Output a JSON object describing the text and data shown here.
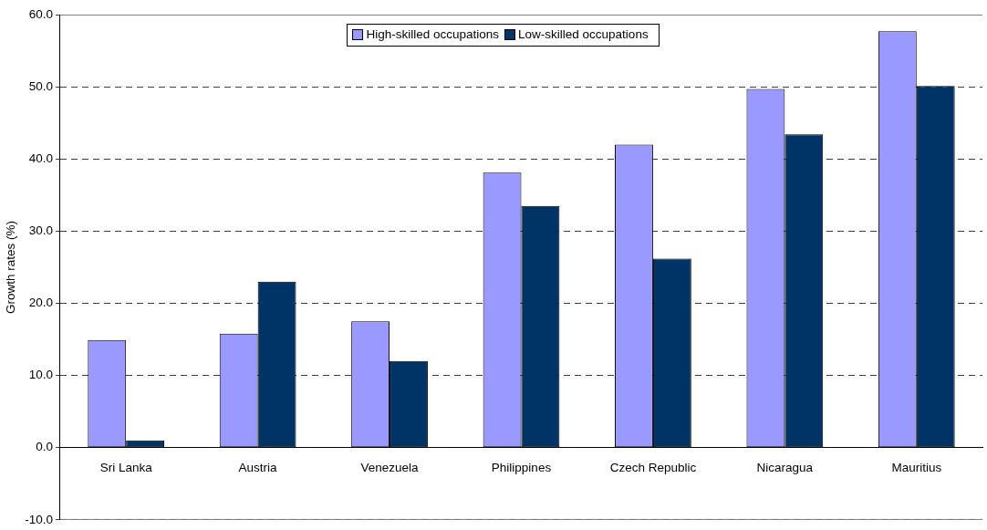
{
  "chart_data": {
    "type": "bar",
    "ylabel": "Growth rates (%)",
    "categories": [
      "Sri Lanka",
      "Austria",
      "Venezuela",
      "Philippines",
      "Czech Republic",
      "Nicaragua",
      "Mauritius"
    ],
    "series": [
      {
        "name": "High-skilled occupations",
        "color": "#9999ff",
        "values": [
          14.9,
          15.8,
          17.5,
          38.1,
          42.0,
          49.7,
          57.7
        ]
      },
      {
        "name": "Low-skilled occupations",
        "color": "#003366",
        "values": [
          1.0,
          23.0,
          12.0,
          33.5,
          26.2,
          43.4,
          50.1
        ]
      }
    ],
    "ylim": [
      -10,
      60
    ],
    "yticks": [
      {
        "value": -10,
        "label": "-10.0"
      },
      {
        "value": 0,
        "label": "0.0"
      },
      {
        "value": 10,
        "label": "10.0"
      },
      {
        "value": 20,
        "label": "20.0"
      },
      {
        "value": 30,
        "label": "30.0"
      },
      {
        "value": 40,
        "label": "40.0"
      },
      {
        "value": 50,
        "label": "50.0"
      },
      {
        "value": 60,
        "label": "60.0"
      }
    ],
    "grid": "y",
    "legend": "top"
  }
}
